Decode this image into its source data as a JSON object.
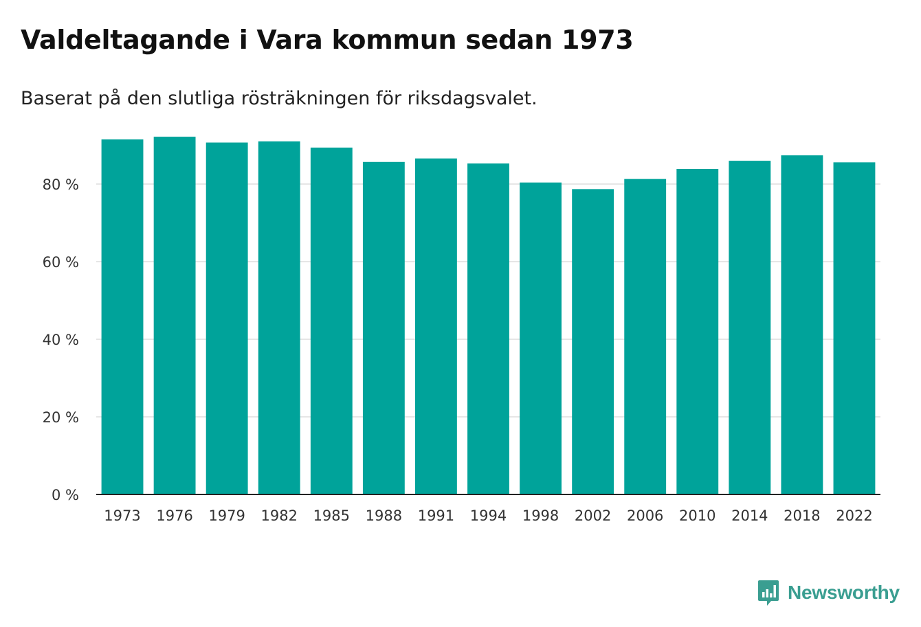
{
  "title": "Valdeltagande i Vara kommun sedan 1973",
  "subtitle": "Baserat på den slutliga rösträkningen för riksdagsvalet.",
  "brand": {
    "name": "Newsworthy",
    "color": "#3a9e91"
  },
  "colors": {
    "bar": "#00a39a",
    "grid": "#dddddd",
    "axis": "#222222",
    "tick_text": "#333333"
  },
  "chart_data": {
    "type": "bar",
    "title": "Valdeltagande i Vara kommun sedan 1973",
    "xlabel": "",
    "ylabel": "",
    "categories": [
      "1973",
      "1976",
      "1979",
      "1982",
      "1985",
      "1988",
      "1991",
      "1994",
      "1998",
      "2002",
      "2006",
      "2010",
      "2014",
      "2018",
      "2022"
    ],
    "values": [
      91.5,
      92.2,
      90.7,
      91.0,
      89.4,
      85.7,
      86.6,
      85.3,
      80.4,
      78.7,
      81.3,
      83.9,
      86.0,
      87.4,
      85.6
    ],
    "ylim": [
      0,
      100
    ],
    "yticks": [
      0,
      20,
      40,
      60,
      80
    ],
    "ytick_labels": [
      "0 %",
      "20 %",
      "40 %",
      "60 %",
      "80 %"
    ],
    "grid": true
  }
}
